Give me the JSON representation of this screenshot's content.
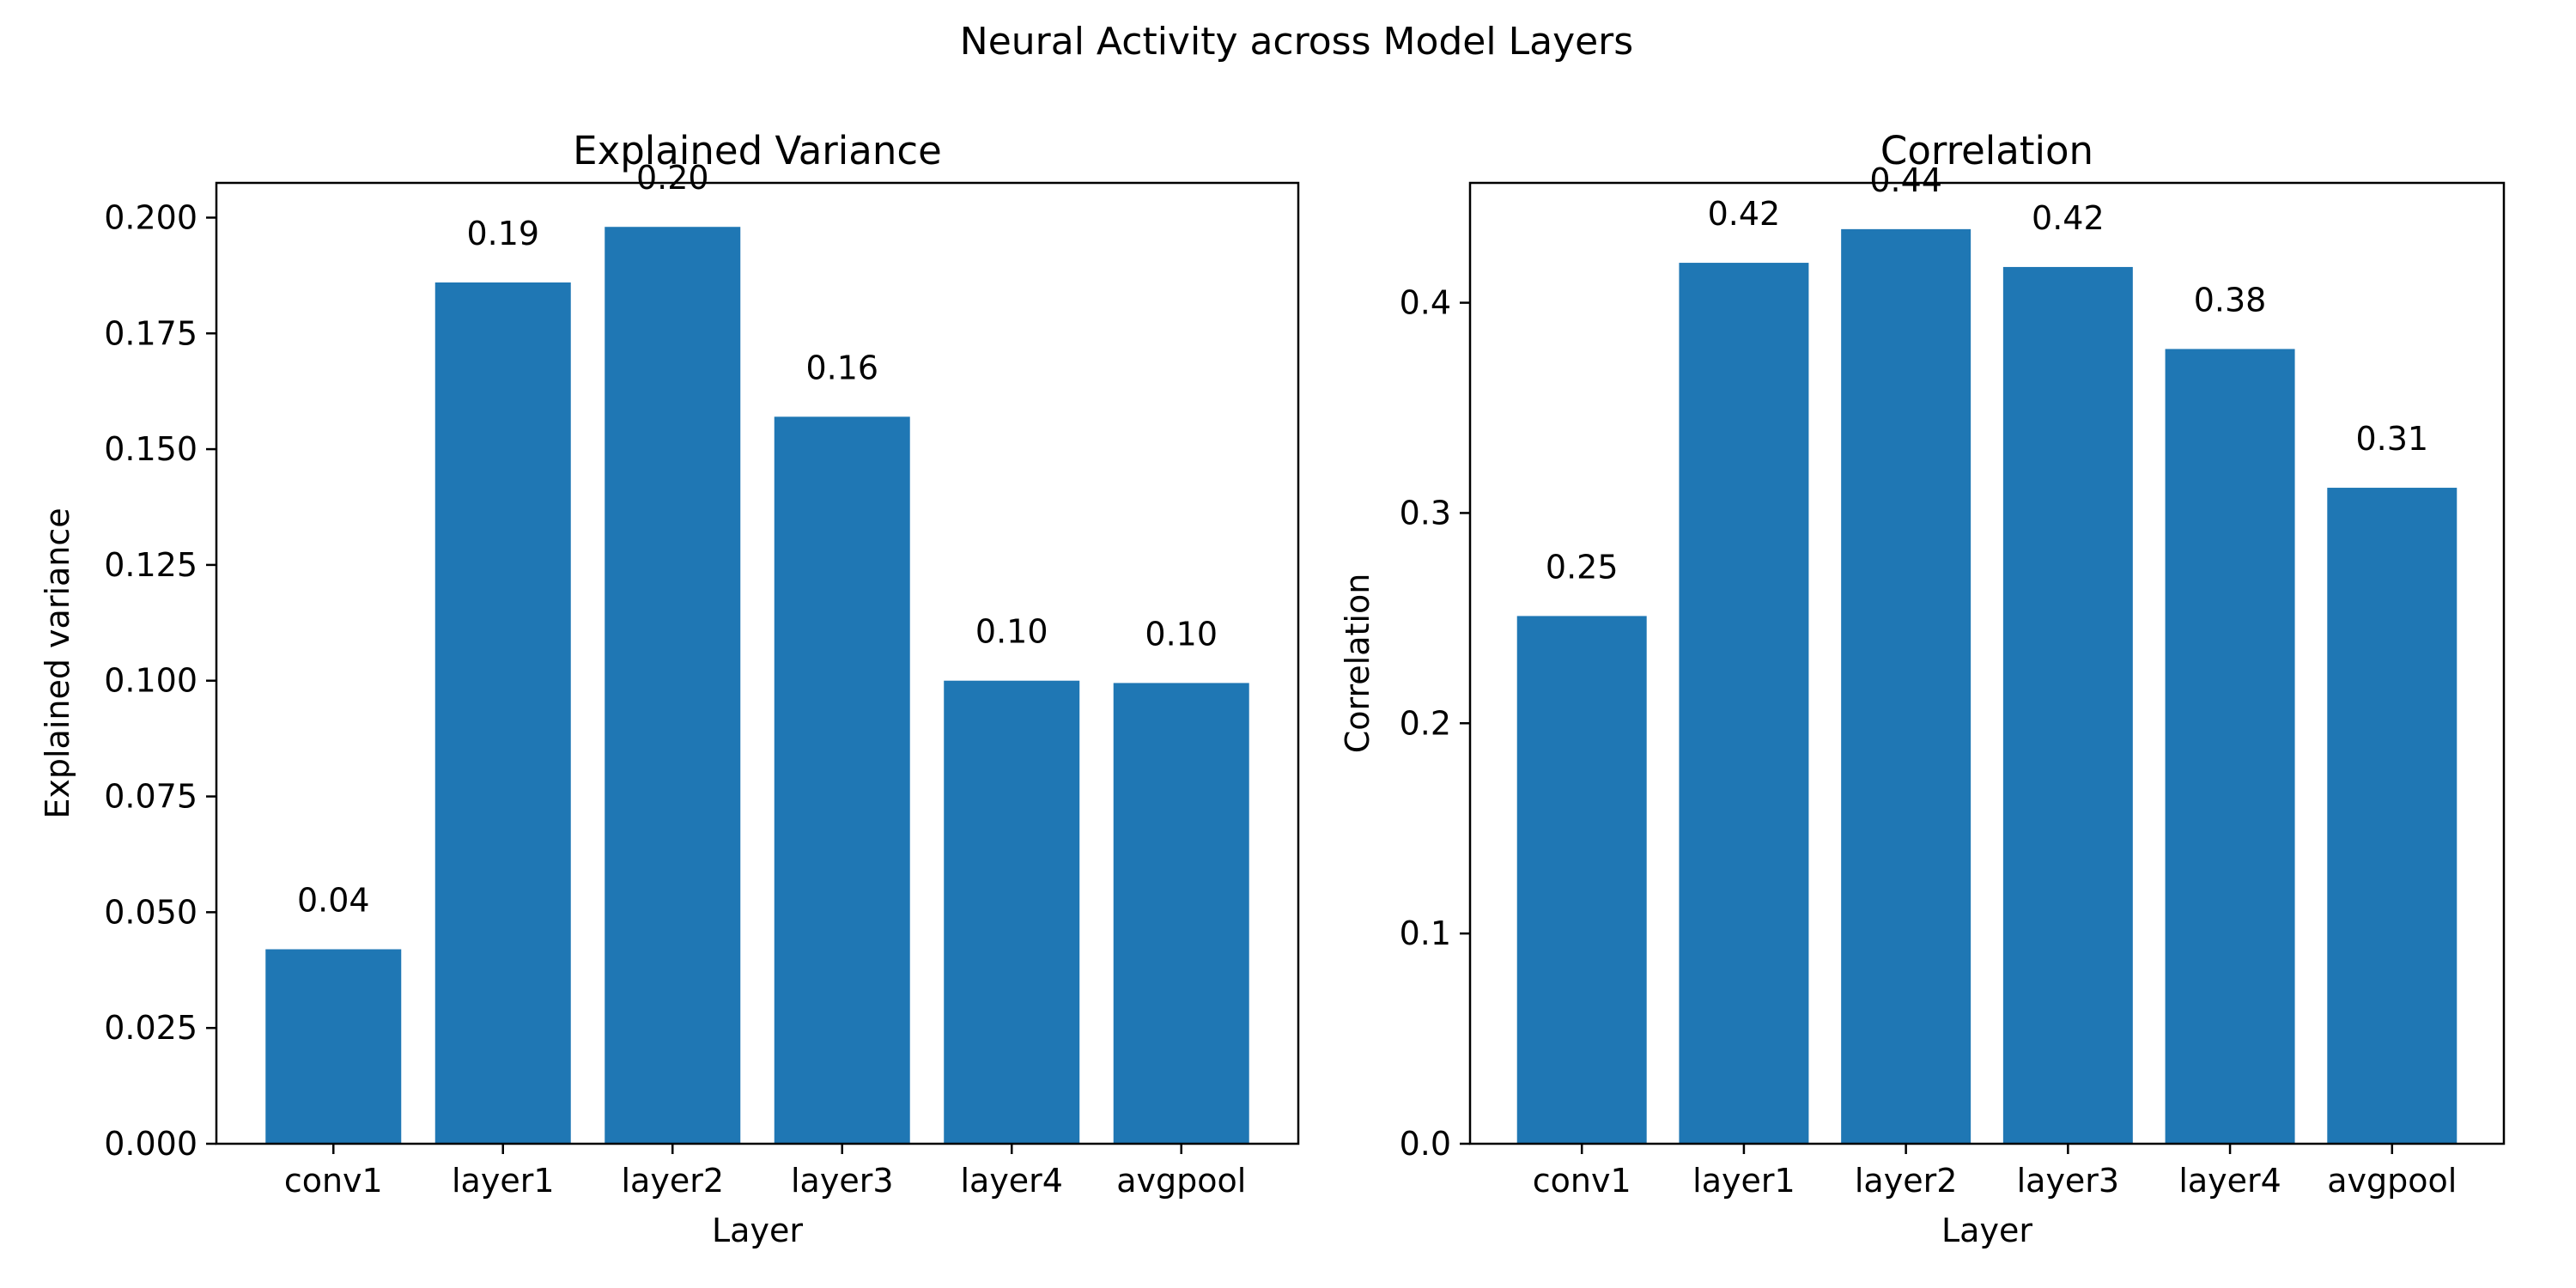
{
  "figure": {
    "suptitle": "Neural Activity across Model Layers"
  },
  "chart_data": [
    {
      "type": "bar",
      "title": "Explained Variance",
      "xlabel": "Layer",
      "ylabel": "Explained variance",
      "categories": [
        "conv1",
        "layer1",
        "layer2",
        "layer3",
        "layer4",
        "avgpool"
      ],
      "values": [
        0.042,
        0.186,
        0.198,
        0.157,
        0.1,
        0.0995
      ],
      "data_labels": [
        "0.04",
        "0.19",
        "0.20",
        "0.16",
        "0.10",
        "0.10"
      ],
      "ylim": [
        0,
        0.2075
      ],
      "yticks": [
        0,
        0.025,
        0.05,
        0.075,
        0.1,
        0.125,
        0.15,
        0.175,
        0.2
      ],
      "ytick_labels": [
        "0.000",
        "0.025",
        "0.050",
        "0.075",
        "0.100",
        "0.125",
        "0.150",
        "0.175",
        "0.200"
      ],
      "bar_color": "#1f77b4",
      "grid": false
    },
    {
      "type": "bar",
      "title": "Correlation",
      "xlabel": "Layer",
      "ylabel": "Correlation",
      "categories": [
        "conv1",
        "layer1",
        "layer2",
        "layer3",
        "layer4",
        "avgpool"
      ],
      "values": [
        0.251,
        0.419,
        0.435,
        0.417,
        0.378,
        0.312
      ],
      "data_labels": [
        "0.25",
        "0.42",
        "0.44",
        "0.42",
        "0.38",
        "0.31"
      ],
      "ylim": [
        0,
        0.457
      ],
      "yticks": [
        0,
        0.1,
        0.2,
        0.3,
        0.4
      ],
      "ytick_labels": [
        "0.0",
        "0.1",
        "0.2",
        "0.3",
        "0.4"
      ],
      "bar_color": "#1f77b4",
      "grid": false
    }
  ]
}
